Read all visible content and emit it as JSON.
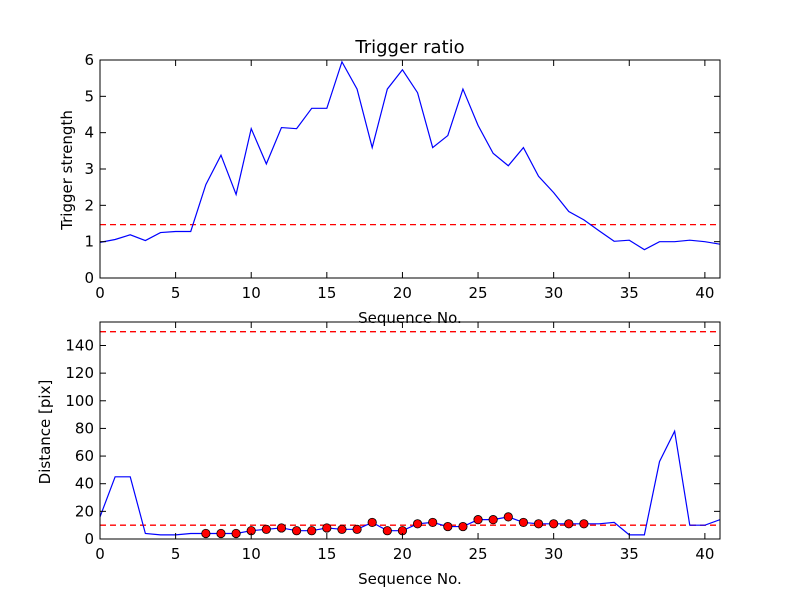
{
  "chart_data": [
    {
      "type": "line",
      "title": "Trigger ratio",
      "xlabel": "Sequence No.",
      "ylabel": "Trigger strength",
      "xlim": [
        0,
        41
      ],
      "ylim": [
        0,
        6
      ],
      "xticks": [
        0,
        5,
        10,
        15,
        20,
        25,
        30,
        35,
        40
      ],
      "yticks": [
        0,
        1,
        2,
        3,
        4,
        5,
        6
      ],
      "grid": false,
      "series": [
        {
          "color": "#0000ff",
          "x": [
            0,
            1,
            2,
            3,
            4,
            5,
            6,
            7,
            8,
            9,
            10,
            11,
            12,
            13,
            14,
            15,
            16,
            17,
            18,
            19,
            20,
            21,
            22,
            23,
            24,
            25,
            26,
            27,
            28,
            29,
            30,
            31,
            32,
            33,
            34,
            35,
            36,
            37,
            38,
            39,
            40,
            41
          ],
          "y": [
            0.98,
            1.06,
            1.19,
            1.03,
            1.25,
            1.28,
            1.28,
            2.57,
            3.38,
            2.3,
            4.11,
            3.14,
            4.14,
            4.11,
            4.67,
            4.67,
            5.95,
            5.2,
            3.59,
            5.2,
            5.73,
            5.1,
            3.59,
            3.92,
            5.2,
            4.2,
            3.43,
            3.09,
            3.59,
            2.8,
            2.35,
            1.83,
            1.6,
            1.3,
            1.01,
            1.04,
            0.78,
            1.0,
            1.0,
            1.04,
            1.0,
            0.93
          ]
        }
      ],
      "threshold": {
        "y": 1.47,
        "color": "#ff0000",
        "style": "dashed"
      }
    },
    {
      "type": "line",
      "title": "",
      "xlabel": "Sequence No.",
      "ylabel": "Distance [pix]",
      "xlim": [
        0,
        41
      ],
      "ylim": [
        0,
        157
      ],
      "xticks": [
        0,
        5,
        10,
        15,
        20,
        25,
        30,
        35,
        40
      ],
      "yticks": [
        0,
        20,
        40,
        60,
        80,
        100,
        120,
        140
      ],
      "grid": false,
      "series": [
        {
          "color": "#0000ff",
          "x": [
            0,
            1,
            2,
            3,
            4,
            5,
            6,
            7,
            8,
            9,
            10,
            11,
            12,
            13,
            14,
            15,
            16,
            17,
            18,
            19,
            20,
            21,
            22,
            23,
            24,
            25,
            26,
            27,
            28,
            29,
            30,
            31,
            32,
            33,
            34,
            35,
            36,
            37,
            38,
            39,
            40,
            41
          ],
          "y": [
            16,
            45,
            45,
            4,
            3,
            3,
            4,
            4,
            4,
            4,
            6,
            7,
            8,
            6,
            6,
            8,
            7,
            7,
            12,
            6,
            6,
            11,
            12,
            9,
            9,
            14,
            14,
            16,
            12,
            11,
            11,
            11,
            11,
            11,
            12,
            3,
            3,
            56,
            78,
            10,
            10,
            14
          ]
        }
      ],
      "markers": {
        "color": "#ff0000",
        "x": [
          7,
          8,
          9,
          10,
          11,
          12,
          13,
          14,
          15,
          16,
          17,
          18,
          19,
          20,
          21,
          22,
          23,
          24,
          25,
          26,
          27,
          28,
          29,
          30,
          31,
          32
        ],
        "y": [
          4,
          4,
          4,
          6,
          7,
          8,
          6,
          6,
          8,
          7,
          7,
          12,
          6,
          6,
          11,
          12,
          9,
          9,
          14,
          14,
          16,
          12,
          11,
          11,
          11,
          11
        ]
      },
      "thresholds": [
        {
          "y": 10,
          "color": "#ff0000",
          "style": "dashed"
        },
        {
          "y": 150,
          "color": "#ff0000",
          "style": "dashed"
        }
      ]
    }
  ]
}
